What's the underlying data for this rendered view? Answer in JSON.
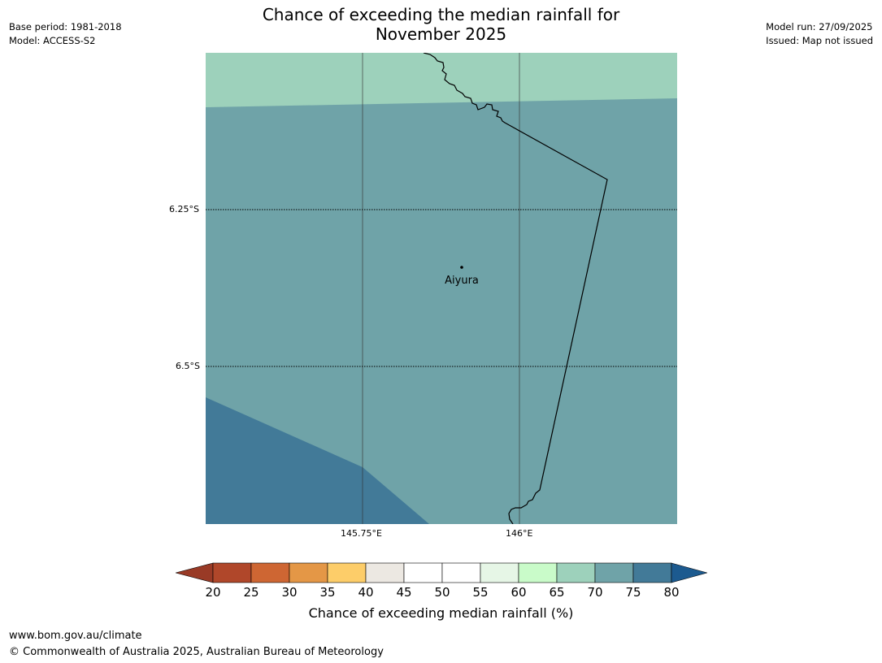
{
  "header": {
    "title_line1": "Chance of exceeding the median rainfall for",
    "title_line2": "November 2025",
    "base_period": "Base period: 1981-2018",
    "model": "Model: ACCESS-S2",
    "model_run": "Model run: 27/09/2025",
    "issued": "Issued: Map not issued"
  },
  "map": {
    "lat_labels": [
      "6.25°S",
      "6.5°S"
    ],
    "lon_labels": [
      "145.75°E",
      "146°E"
    ],
    "place": {
      "name": "Aiyura"
    },
    "region_colors": {
      "band_65_70": "#9dd1bb",
      "band_70_75": "#6fa3a8",
      "band_75_80": "#427a98"
    }
  },
  "colorbar": {
    "label": "Chance of exceeding median rainfall (%)",
    "ticks": [
      "20",
      "25",
      "30",
      "35",
      "40",
      "45",
      "50",
      "55",
      "60",
      "65",
      "70",
      "75",
      "80"
    ],
    "colors": [
      "#b0472a",
      "#ce6633",
      "#e49746",
      "#fdcd69",
      "#ece8e2",
      "#ffffff",
      "#ffffff",
      "#e6f6e6",
      "#c9fbc9",
      "#9dd1bb",
      "#6fa3a8",
      "#427a98"
    ],
    "extend_low_color": "#993a26",
    "extend_high_color": "#1c5a8f"
  },
  "footer": {
    "url": "www.bom.gov.au/climate",
    "copyright": "© Commonwealth of Australia 2025, Australian Bureau of Meteorology"
  }
}
